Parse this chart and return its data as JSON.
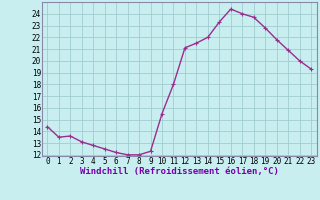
{
  "x": [
    0,
    1,
    2,
    3,
    4,
    5,
    6,
    7,
    8,
    9,
    10,
    11,
    12,
    13,
    14,
    15,
    16,
    17,
    18,
    19,
    20,
    21,
    22,
    23
  ],
  "y": [
    14.4,
    13.5,
    13.6,
    13.1,
    12.8,
    12.5,
    12.2,
    12.0,
    12.0,
    12.3,
    15.5,
    18.0,
    21.1,
    21.5,
    22.0,
    23.3,
    24.4,
    24.0,
    23.7,
    22.8,
    21.8,
    20.9,
    20.0,
    19.3
  ],
  "line_color": "#9b2d8e",
  "marker": "+",
  "marker_size": 3,
  "linewidth": 1.0,
  "xlabel": "Windchill (Refroidissement éolien,°C)",
  "xlabel_fontsize": 6.5,
  "bg_color": "#c8eef0",
  "grid_color": "#a0ccd0",
  "ylim_min": 12,
  "ylim_max": 25,
  "xlim_min": -0.5,
  "xlim_max": 23.5,
  "yticks": [
    12,
    13,
    14,
    15,
    16,
    17,
    18,
    19,
    20,
    21,
    22,
    23,
    24
  ],
  "xticks": [
    0,
    1,
    2,
    3,
    4,
    5,
    6,
    7,
    8,
    9,
    10,
    11,
    12,
    13,
    14,
    15,
    16,
    17,
    18,
    19,
    20,
    21,
    22,
    23
  ],
  "tick_fontsize": 5.5,
  "border_color": "#8888aa"
}
